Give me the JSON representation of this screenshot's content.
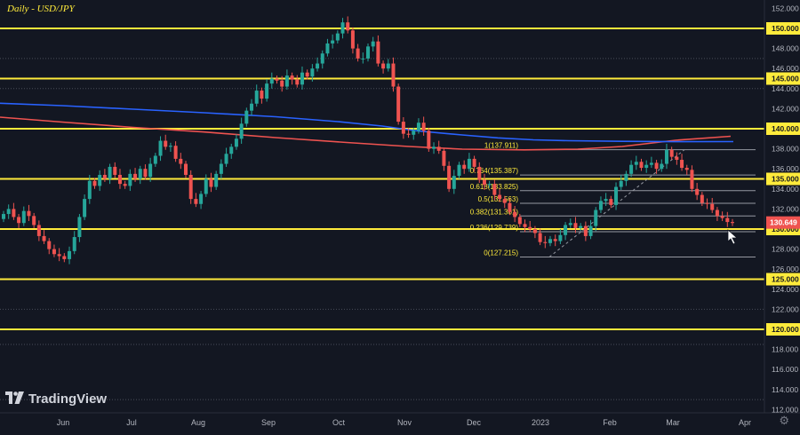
{
  "chart_title": "Daily - USD/JPY",
  "logo_text": "TradingView",
  "settings_icon": "gear-icon",
  "cursor_icon": "arrow-cursor-icon",
  "chart_data": {
    "type": "candlestick",
    "title": "Daily - USD/JPY",
    "ylim": [
      111,
      153
    ],
    "y_ticks": [
      "152.000",
      "150.000",
      "148.000",
      "146.000",
      "145.000",
      "144.000",
      "142.000",
      "140.000",
      "138.000",
      "136.000",
      "135.000",
      "134.000",
      "132.000",
      "130.000",
      "128.000",
      "126.000",
      "125.000",
      "124.000",
      "122.000",
      "120.000",
      "118.000",
      "116.000",
      "114.000",
      "112.000"
    ],
    "x_ticks": [
      "Jun",
      "Jul",
      "Aug",
      "Sep",
      "Oct",
      "Nov",
      "Dec",
      "2023",
      "Feb",
      "Mar",
      "Apr"
    ],
    "last_price": "130.649",
    "horizontal_levels": [
      150,
      145,
      140,
      135,
      130,
      125,
      120
    ],
    "fibonacci_levels": [
      {
        "label": "1(137.911)",
        "value": 137.911
      },
      {
        "label": "0.764(135.387)",
        "value": 135.387
      },
      {
        "label": "0.618(133.825)",
        "value": 133.825
      },
      {
        "label": "0.5(132.563)",
        "value": 132.563
      },
      {
        "label": "0.382(131.301)",
        "value": 131.301
      },
      {
        "label": "0.236(129.739)",
        "value": 129.739
      },
      {
        "label": "0(127.215)",
        "value": 127.215
      }
    ],
    "ma_red_points": [
      [
        0,
        132.0
      ],
      [
        70,
        137.5
      ],
      [
        150,
        143.5
      ],
      [
        230,
        148.7
      ],
      [
        310,
        155.0
      ],
      [
        390,
        160.5
      ],
      [
        460,
        165.0
      ],
      [
        520,
        168.0
      ],
      [
        590,
        168.8
      ],
      [
        650,
        168.0
      ],
      [
        700,
        165.0
      ],
      [
        760,
        158.0
      ],
      [
        822,
        153.5
      ]
    ],
    "ma_blue_points": [
      [
        0,
        116.3
      ],
      [
        70,
        119.0
      ],
      [
        150,
        123.0
      ],
      [
        230,
        127.0
      ],
      [
        310,
        131.5
      ],
      [
        380,
        137.0
      ],
      [
        430,
        142.0
      ],
      [
        470,
        147.5
      ],
      [
        520,
        152.0
      ],
      [
        560,
        155.3
      ],
      [
        600,
        157.5
      ],
      [
        640,
        158.5
      ],
      [
        700,
        159.2
      ],
      [
        760,
        159.6
      ],
      [
        825,
        159.5
      ]
    ],
    "candles_close": [
      131.5,
      132.0,
      131.2,
      130.6,
      131.8,
      131.3,
      130.4,
      129.3,
      128.8,
      128.0,
      127.5,
      127.3,
      127.0,
      127.8,
      129.2,
      131.2,
      133.0,
      134.8,
      134.3,
      135.4,
      135.0,
      136.2,
      135.4,
      134.5,
      134.3,
      135.5,
      135.0,
      136.0,
      135.2,
      136.5,
      137.3,
      138.8,
      138.2,
      138.3,
      137.0,
      136.5,
      135.4,
      133.0,
      132.5,
      133.5,
      135.0,
      134.2,
      135.5,
      136.5,
      137.5,
      138.2,
      139.0,
      140.5,
      141.8,
      142.5,
      143.8,
      143.0,
      144.5,
      145.0,
      144.8,
      144.2,
      145.3,
      144.9,
      144.4,
      145.6,
      145.2,
      146.0,
      146.5,
      147.5,
      148.5,
      148.8,
      149.5,
      150.6,
      149.8,
      148.0,
      147.0,
      147.0,
      148.2,
      148.7,
      146.5,
      146.0,
      146.5,
      144.2,
      140.7,
      139.5,
      139.4,
      139.8,
      140.6,
      139.8,
      138.0,
      138.2,
      137.8,
      136.3,
      134.0,
      135.3,
      136.4,
      136.0,
      137.0,
      136.2,
      134.9,
      134.4,
      134.5,
      133.4,
      133.0,
      132.6,
      131.7,
      131.2,
      130.5,
      130.2,
      130.0,
      129.6,
      128.7,
      128.6,
      129.0,
      128.8,
      129.4,
      130.4,
      130.6,
      130.1,
      130.3,
      129.3,
      130.3,
      131.9,
      132.8,
      133.0,
      132.4,
      134.2,
      134.8,
      135.5,
      136.4,
      136.7,
      136.1,
      136.4,
      136.6,
      136.0,
      136.5,
      137.9,
      137.2,
      136.9,
      136.1,
      135.9,
      134.0,
      133.4,
      132.6,
      132.5,
      131.9,
      131.3,
      131.1,
      130.7,
      130.6
    ]
  }
}
